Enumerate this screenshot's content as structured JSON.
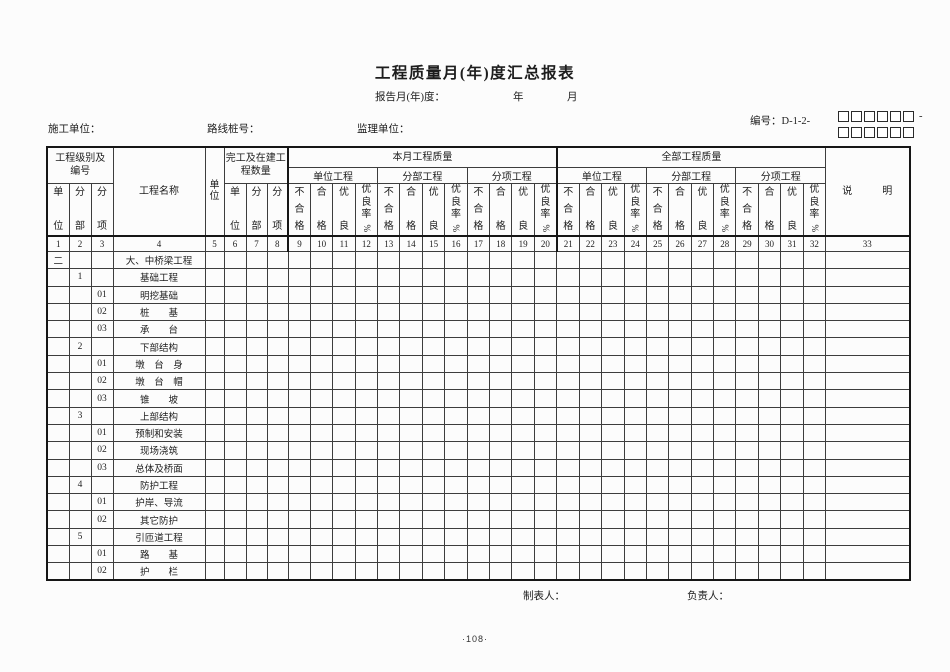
{
  "header": {
    "title": "工程质量月(年)度汇总报表",
    "report_period_label": "报告月(年)度：",
    "year_label": "年",
    "month_label": "月",
    "contractor_label": "施工单位：",
    "route_label": "路线桩号：",
    "supervisor_label": "监理单位：",
    "code_label": "编号：D-1-2-",
    "code_separator": "-",
    "code_boxes_row1": 6,
    "code_boxes_row2": 6
  },
  "table": {
    "group_headers": {
      "level_and_number": "工程级别及\n编号",
      "project_name": "工程名称",
      "unit": "单\n位",
      "completed_quantity": "完工及在建工\n程数量",
      "this_month": "本月工程质量",
      "all_quality": "全部工程质量",
      "notes": "说　　　明"
    },
    "subgroups": [
      "单位工程",
      "分部工程",
      "分项工程"
    ],
    "level_cols": [
      "单\n\n位",
      "分\n\n部",
      "分\n\n项"
    ],
    "quantity_cols": [
      "单\n\n位",
      "分\n\n部",
      "分\n\n项"
    ],
    "quality_cols": [
      "不\n合\n格",
      "合\n\n格",
      "优\n\n良",
      "优\n良\n率\n%"
    ],
    "column_numbers": [
      "1",
      "2",
      "3",
      "4",
      "5",
      "6",
      "7",
      "8",
      "9",
      "10",
      "11",
      "12",
      "13",
      "14",
      "15",
      "16",
      "17",
      "18",
      "19",
      "20",
      "21",
      "22",
      "23",
      "24",
      "25",
      "26",
      "27",
      "28",
      "29",
      "30",
      "31",
      "32",
      "33"
    ],
    "rows": [
      {
        "c1": "二",
        "c2": "",
        "c3": "",
        "name": "大、中桥梁工程"
      },
      {
        "c1": "",
        "c2": "1",
        "c3": "",
        "name": "基础工程"
      },
      {
        "c1": "",
        "c2": "",
        "c3": "01",
        "name": "明挖基础"
      },
      {
        "c1": "",
        "c2": "",
        "c3": "02",
        "name": "桩　　基"
      },
      {
        "c1": "",
        "c2": "",
        "c3": "03",
        "name": "承　　台"
      },
      {
        "c1": "",
        "c2": "2",
        "c3": "",
        "name": "下部结构"
      },
      {
        "c1": "",
        "c2": "",
        "c3": "01",
        "name": "墩　台　身"
      },
      {
        "c1": "",
        "c2": "",
        "c3": "02",
        "name": "墩　台　帽"
      },
      {
        "c1": "",
        "c2": "",
        "c3": "03",
        "name": "锥　　坡"
      },
      {
        "c1": "",
        "c2": "3",
        "c3": "",
        "name": "上部结构"
      },
      {
        "c1": "",
        "c2": "",
        "c3": "01",
        "name": "预制和安装"
      },
      {
        "c1": "",
        "c2": "",
        "c3": "02",
        "name": "现场浇筑"
      },
      {
        "c1": "",
        "c2": "",
        "c3": "03",
        "name": "总体及桥面"
      },
      {
        "c1": "",
        "c2": "4",
        "c3": "",
        "name": "防护工程"
      },
      {
        "c1": "",
        "c2": "",
        "c3": "01",
        "name": "护岸、导流"
      },
      {
        "c1": "",
        "c2": "",
        "c3": "02",
        "name": "其它防护"
      },
      {
        "c1": "",
        "c2": "5",
        "c3": "",
        "name": "引匝道工程"
      },
      {
        "c1": "",
        "c2": "",
        "c3": "01",
        "name": "路　　基"
      },
      {
        "c1": "",
        "c2": "",
        "c3": "02",
        "name": "护　　栏"
      }
    ]
  },
  "footer": {
    "preparer_label": "制表人：",
    "responsible_label": "负责人：",
    "page_number": "·108·"
  }
}
